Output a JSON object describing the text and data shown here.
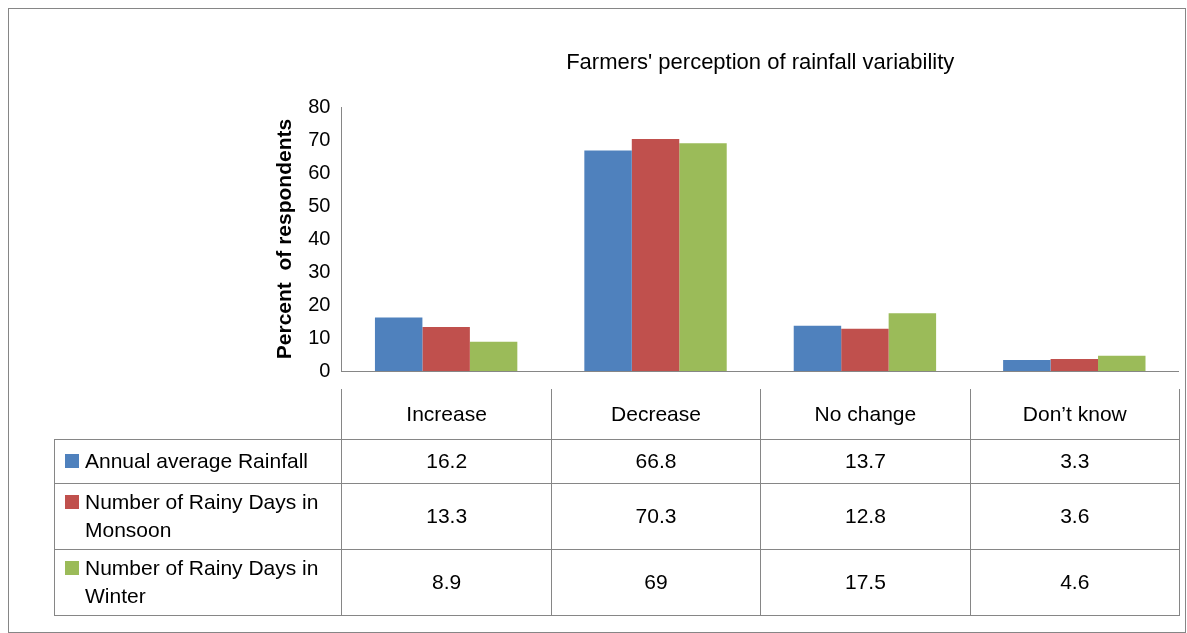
{
  "chart_data": {
    "type": "bar",
    "title": "Farmers' perception of rainfall variability",
    "ylabel": "Percent  of respondents",
    "categories": [
      "Increase",
      "Decrease",
      "No change",
      "Don’t know"
    ],
    "series": [
      {
        "name": "Annual average Rainfall",
        "color": "#4f81bd",
        "values": [
          16.2,
          66.8,
          13.7,
          3.3
        ]
      },
      {
        "name": "Number of Rainy Days in Monsoon",
        "color": "#c0504d",
        "values": [
          13.3,
          70.3,
          12.8,
          3.6
        ]
      },
      {
        "name": "Number of Rainy Days in Winter",
        "color": "#9bbb59",
        "values": [
          8.9,
          69,
          17.5,
          4.6
        ]
      }
    ],
    "ylim": [
      0,
      80
    ],
    "yticks": [
      0,
      10,
      20,
      30,
      40,
      50,
      60,
      70,
      80
    ],
    "grid": false,
    "legend": "bottom",
    "data_labels": true
  }
}
